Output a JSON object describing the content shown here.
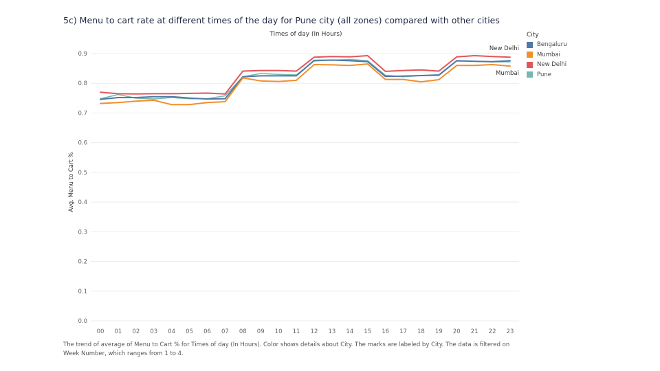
{
  "header": {
    "title": "5c) Menu to cart rate at different times of the day for Pune city (all zones) compared with other cities",
    "caption": "The trend of average of Menu to Cart % for Times of day (In Hours).  Color shows details about City.  The marks are labeled by City. The data is filtered on Week Number, which ranges from 1 to 4."
  },
  "legend": {
    "title": "City",
    "position": "right",
    "items": [
      {
        "label": "Bengaluru",
        "color": "#4e79a7"
      },
      {
        "label": "Mumbai",
        "color": "#f28e2b"
      },
      {
        "label": "New Delhi",
        "color": "#e15759"
      },
      {
        "label": "Pune",
        "color": "#76b7b2"
      }
    ]
  },
  "chart_data": {
    "type": "line",
    "title": "5c) Menu to cart rate at different times of the day for Pune city (all zones) compared with other cities",
    "xlabel": "Times of day (In Hours)",
    "ylabel": "Avg. Menu to Cart %",
    "ylim": [
      0,
      0.9
    ],
    "yticks": [
      "0.0",
      "0.1",
      "0.2",
      "0.3",
      "0.4",
      "0.5",
      "0.6",
      "0.7",
      "0.8",
      "0.9"
    ],
    "grid": true,
    "x": [
      "00",
      "01",
      "02",
      "03",
      "04",
      "05",
      "06",
      "07",
      "08",
      "09",
      "10",
      "11",
      "12",
      "13",
      "14",
      "15",
      "16",
      "17",
      "18",
      "19",
      "20",
      "21",
      "22",
      "23"
    ],
    "series": [
      {
        "name": "Bengaluru",
        "color": "#4e79a7",
        "values": [
          0.746,
          0.752,
          0.752,
          0.755,
          0.755,
          0.75,
          0.747,
          0.748,
          0.822,
          0.825,
          0.825,
          0.825,
          0.877,
          0.878,
          0.876,
          0.873,
          0.823,
          0.824,
          0.826,
          0.828,
          0.876,
          0.874,
          0.873,
          0.876
        ]
      },
      {
        "name": "Mumbai",
        "color": "#f28e2b",
        "values": [
          0.732,
          0.735,
          0.74,
          0.743,
          0.728,
          0.728,
          0.735,
          0.738,
          0.818,
          0.808,
          0.806,
          0.81,
          0.863,
          0.862,
          0.86,
          0.865,
          0.813,
          0.813,
          0.805,
          0.812,
          0.86,
          0.86,
          0.863,
          0.858
        ]
      },
      {
        "name": "New Delhi",
        "color": "#e15759",
        "values": [
          0.77,
          0.765,
          0.764,
          0.765,
          0.765,
          0.766,
          0.767,
          0.764,
          0.841,
          0.843,
          0.843,
          0.841,
          0.888,
          0.89,
          0.889,
          0.893,
          0.84,
          0.843,
          0.845,
          0.841,
          0.889,
          0.893,
          0.89,
          0.888
        ]
      },
      {
        "name": "Pune",
        "color": "#76b7b2",
        "values": [
          0.748,
          0.762,
          0.75,
          0.747,
          0.752,
          0.748,
          0.748,
          0.758,
          0.822,
          0.833,
          0.83,
          0.828,
          0.875,
          0.878,
          0.88,
          0.876,
          0.827,
          0.822,
          0.826,
          0.826,
          0.875,
          0.874,
          0.872,
          0.872
        ]
      }
    ],
    "mark_labels": [
      {
        "text": "New Delhi",
        "series": "New Delhi"
      },
      {
        "text": "Mumbai",
        "series": "Mumbai"
      }
    ]
  }
}
